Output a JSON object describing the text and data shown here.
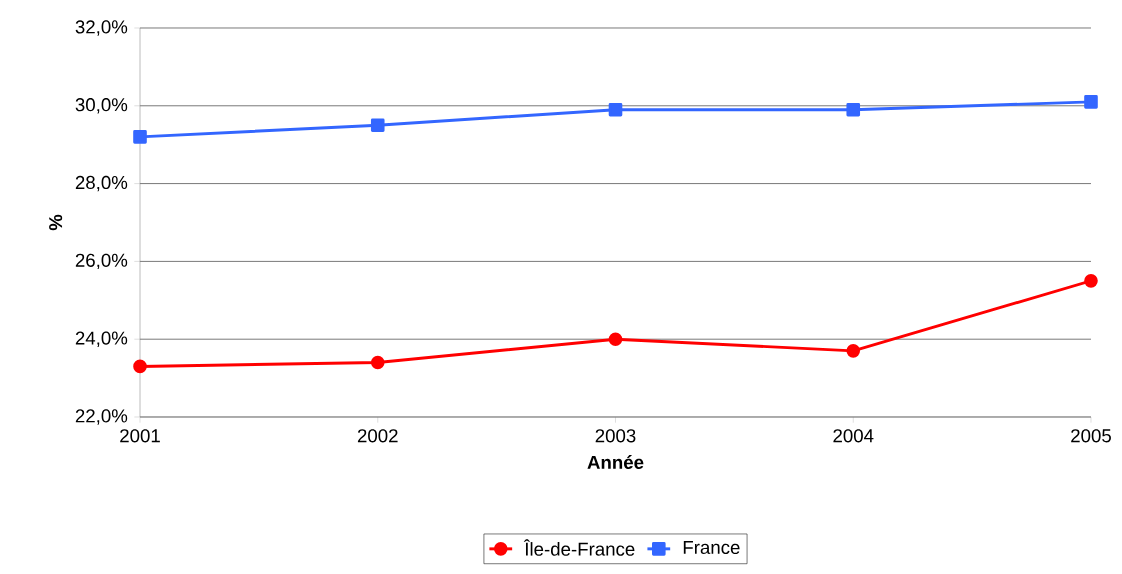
{
  "chart_data": {
    "type": "line",
    "xlabel": "Année",
    "ylabel": "%",
    "x": [
      2001,
      2002,
      2003,
      2004,
      2005
    ],
    "series": [
      {
        "name": "Île-de-France",
        "color": "#ff0000",
        "marker": "circle",
        "values": [
          23.3,
          23.4,
          24.0,
          23.7,
          25.5
        ]
      },
      {
        "name": "France",
        "color": "#3366ff",
        "marker": "square",
        "values": [
          29.2,
          29.5,
          29.9,
          29.9,
          30.1
        ]
      }
    ],
    "xlim": [
      2001,
      2005
    ],
    "xticks": [
      2001,
      2002,
      2003,
      2004,
      2005
    ],
    "ylim": [
      22,
      32
    ],
    "yticks": [
      {
        "value": 22,
        "label": "22,0%"
      },
      {
        "value": 24,
        "label": "24,0%"
      },
      {
        "value": 26,
        "label": "26,0%"
      },
      {
        "value": 28,
        "label": "28,0%"
      },
      {
        "value": 30,
        "label": "30,0%"
      },
      {
        "value": 32,
        "label": "32,0%"
      }
    ],
    "grid": "y",
    "legend": "bottom",
    "line_style": "solid"
  }
}
